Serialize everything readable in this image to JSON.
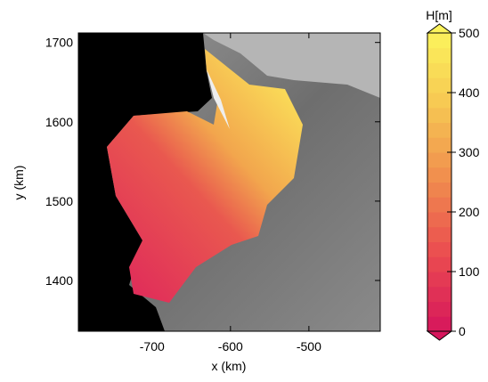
{
  "chart_data": {
    "type": "map",
    "xlabel": "x (km)",
    "ylabel": "y (km)",
    "xlim": [
      -794,
      -409
    ],
    "xticks": [
      -700,
      -600,
      -500
    ],
    "ylim": [
      1336,
      1712
    ],
    "yticks": [
      1400,
      1500,
      1600,
      1700
    ],
    "colorbar": {
      "label": "H[m]",
      "lim": [
        0,
        500
      ],
      "ticks": [
        0,
        100,
        200,
        300,
        400,
        500
      ],
      "n_levels": 20,
      "colors": [
        "#d6165c",
        "#ea4a50",
        "#f08a4e",
        "#f6c552",
        "#fbf35c"
      ],
      "extend": "both"
    }
  }
}
